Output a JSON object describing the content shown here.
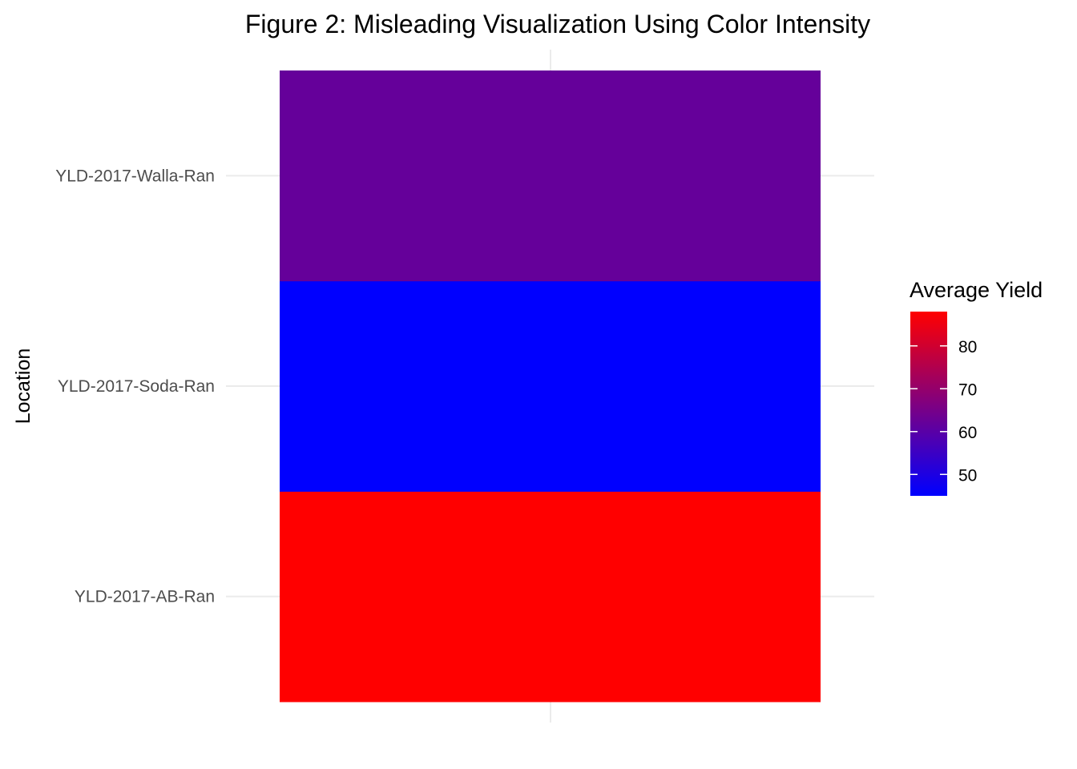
{
  "chart_data": {
    "type": "heatmap",
    "title": "Figure 2: Misleading Visualization Using Color Intensity",
    "xlabel": "",
    "ylabel": "Location",
    "categories": [
      "YLD-2017-AB-Ran",
      "YLD-2017-Soda-Ran",
      "YLD-2017-Walla-Ran"
    ],
    "values": [
      88,
      45,
      62
    ],
    "legend": {
      "title": "Average Yield",
      "position": "right",
      "min": 45,
      "max": 88,
      "ticks": [
        50,
        60,
        70,
        80
      ],
      "low_color": "#0000ff",
      "high_color": "#ff0000"
    },
    "grid": true
  }
}
